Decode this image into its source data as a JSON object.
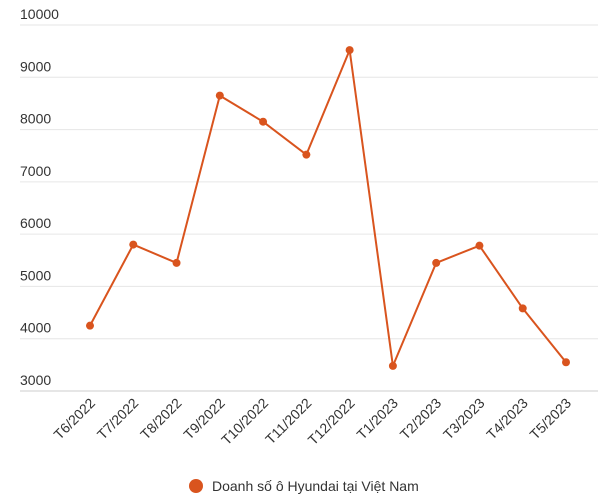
{
  "chart_data": {
    "type": "line",
    "title": "",
    "xlabel": "",
    "ylabel": "",
    "categories": [
      "T6/2022",
      "T7/2022",
      "T8/2022",
      "T9/2022",
      "T10/2022",
      "T11/2022",
      "T12/2022",
      "T1/2023",
      "T2/2023",
      "T3/2023",
      "T4/2023",
      "T5/2023"
    ],
    "series": [
      {
        "name": "Doanh số ô Hyundai tại Việt Nam",
        "values": [
          4250,
          5800,
          5450,
          8650,
          8150,
          7520,
          9520,
          3480,
          5450,
          5780,
          4580,
          3550
        ],
        "color": "#d9541e"
      }
    ],
    "ylim": [
      3000,
      10000
    ],
    "yticks": [
      3000,
      4000,
      5000,
      6000,
      7000,
      8000,
      9000,
      10000
    ],
    "grid": true,
    "legend_position": "bottom"
  }
}
